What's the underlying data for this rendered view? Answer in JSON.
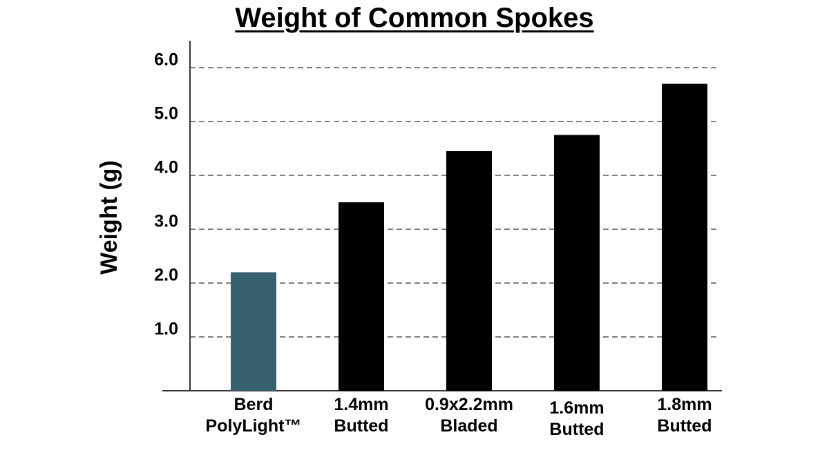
{
  "chart_data": {
    "type": "bar",
    "title": "Weight of Common Spokes",
    "y_label": "Weight (g)",
    "categories": [
      "Berd\nPolyLight™",
      "1.4mm\nButted",
      "0.9x2.2mm\nBladed",
      "1.6mm\nButted",
      "1.8mm\nButted"
    ],
    "values": [
      2.2,
      3.5,
      4.45,
      4.75,
      5.7
    ],
    "colors": [
      "#36606e",
      "#000000",
      "#000000",
      "#000000",
      "#000000"
    ],
    "ylim": [
      0,
      6.5
    ],
    "yticks": [
      {
        "value": 1,
        "label": "1.0"
      },
      {
        "value": 2,
        "label": "2.0"
      },
      {
        "value": 3,
        "label": "3.0"
      },
      {
        "value": 4,
        "label": "4.0"
      },
      {
        "value": 5,
        "label": "5.0"
      },
      {
        "value": 6,
        "label": "6.0"
      }
    ],
    "grid": true
  }
}
